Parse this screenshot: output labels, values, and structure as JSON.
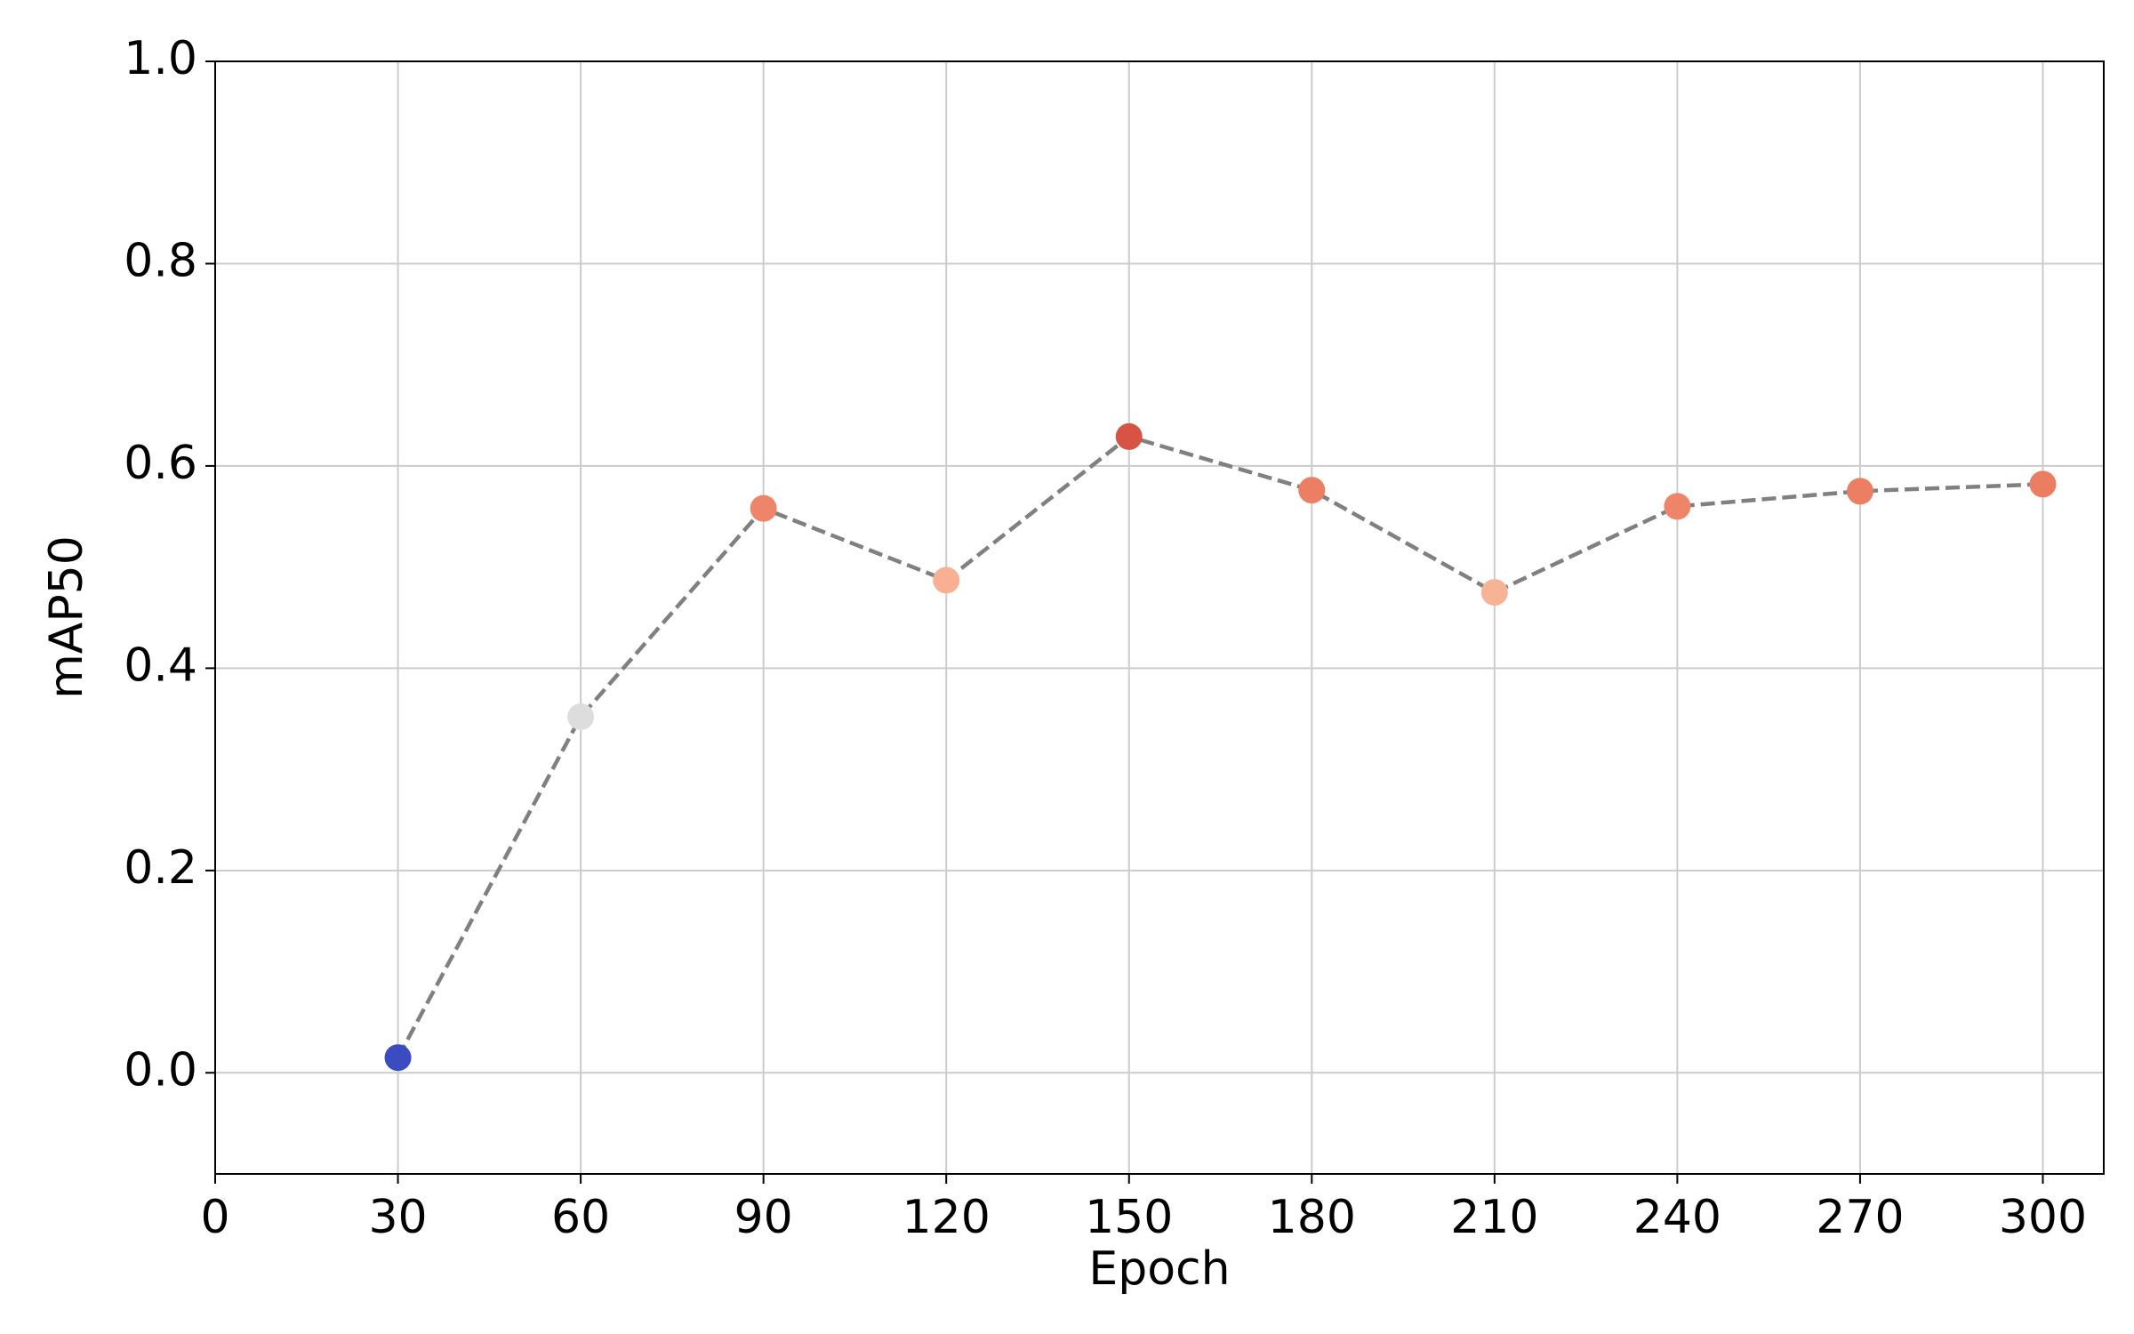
{
  "chart_data": {
    "type": "line",
    "xlabel": "Epoch",
    "ylabel": "mAP50",
    "x": [
      30,
      60,
      90,
      120,
      150,
      180,
      210,
      240,
      270,
      300
    ],
    "series": [
      {
        "color": "#808080",
        "values": [
          0.015,
          0.352,
          0.558,
          0.487,
          0.629,
          0.576,
          0.475,
          0.56,
          0.575,
          0.582
        ],
        "point_colors": [
          "#3b4cc0",
          "#dddddd",
          "#ee8468",
          "#f7b093",
          "#d75445",
          "#ec7f63",
          "#f6b396",
          "#ee8468",
          "#ec7f63",
          "#eb7d61"
        ]
      }
    ],
    "xlim": [
      0,
      310
    ],
    "ylim": [
      -0.1,
      1.0
    ],
    "xticks": [
      0,
      30,
      60,
      90,
      120,
      150,
      180,
      210,
      240,
      270,
      300
    ],
    "yticks": [
      {
        "value": 0,
        "label": "0.0"
      },
      0.2,
      0.4,
      0.6,
      0.8,
      {
        "value": 1,
        "label": "1.0"
      }
    ],
    "grid": true
  }
}
